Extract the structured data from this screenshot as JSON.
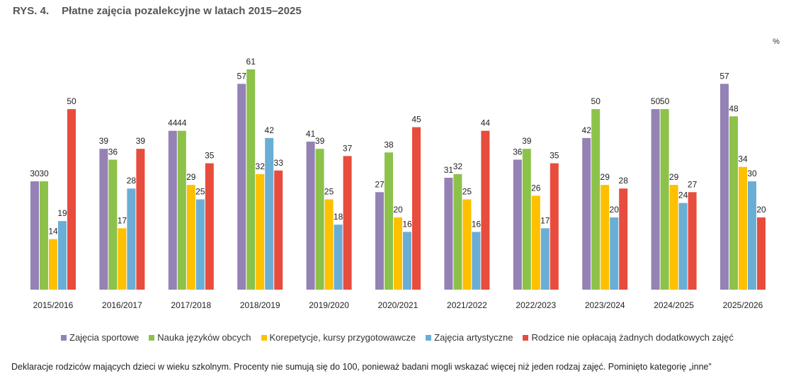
{
  "header": {
    "figure_label": "RYS. 4.",
    "title": "Płatne zajęcia pozalekcyjne w latach 2015–2025"
  },
  "unit_label": "%",
  "footnote": "Deklaracje rodziców mających dzieci w wieku szkolnym. Procenty nie sumują się do 100, ponieważ badani mogli wskazać więcej niż jeden rodzaj zajęć. Pominięto kategorię „inne”",
  "chart_data": {
    "type": "bar",
    "title": "Płatne zajęcia pozalekcyjne w latach 2015–2025",
    "xlabel": "",
    "ylabel": "%",
    "ylim": [
      0,
      61
    ],
    "grid": false,
    "legend_position": "bottom",
    "categories": [
      "2015/2016",
      "2016/2017",
      "2017/2018",
      "2018/2019",
      "2019/2020",
      "2020/2021",
      "2021/2022",
      "2022/2023",
      "2023/2024",
      "2024/2025",
      "2025/2026"
    ],
    "series": [
      {
        "name": "Zajęcia sportowe",
        "color": "#9482B5",
        "values": [
          30,
          39,
          44,
          57,
          41,
          27,
          31,
          36,
          42,
          50,
          57
        ]
      },
      {
        "name": "Nauka języków obcych",
        "color": "#8DC24A",
        "values": [
          30,
          36,
          44,
          61,
          39,
          38,
          32,
          39,
          50,
          50,
          48
        ]
      },
      {
        "name": "Korepetycje, kursy przygotowawcze",
        "color": "#FFC000",
        "values": [
          14,
          17,
          29,
          32,
          25,
          20,
          25,
          26,
          29,
          29,
          34
        ]
      },
      {
        "name": "Zajęcia artystyczne",
        "color": "#6AAED6",
        "values": [
          19,
          28,
          25,
          42,
          18,
          16,
          16,
          17,
          20,
          24,
          30
        ]
      },
      {
        "name": "Rodzice nie opłacają żadnych dodatkowych zajęć",
        "color": "#E84C3D",
        "values": [
          50,
          39,
          35,
          33,
          37,
          45,
          44,
          35,
          28,
          27,
          20
        ]
      }
    ]
  }
}
